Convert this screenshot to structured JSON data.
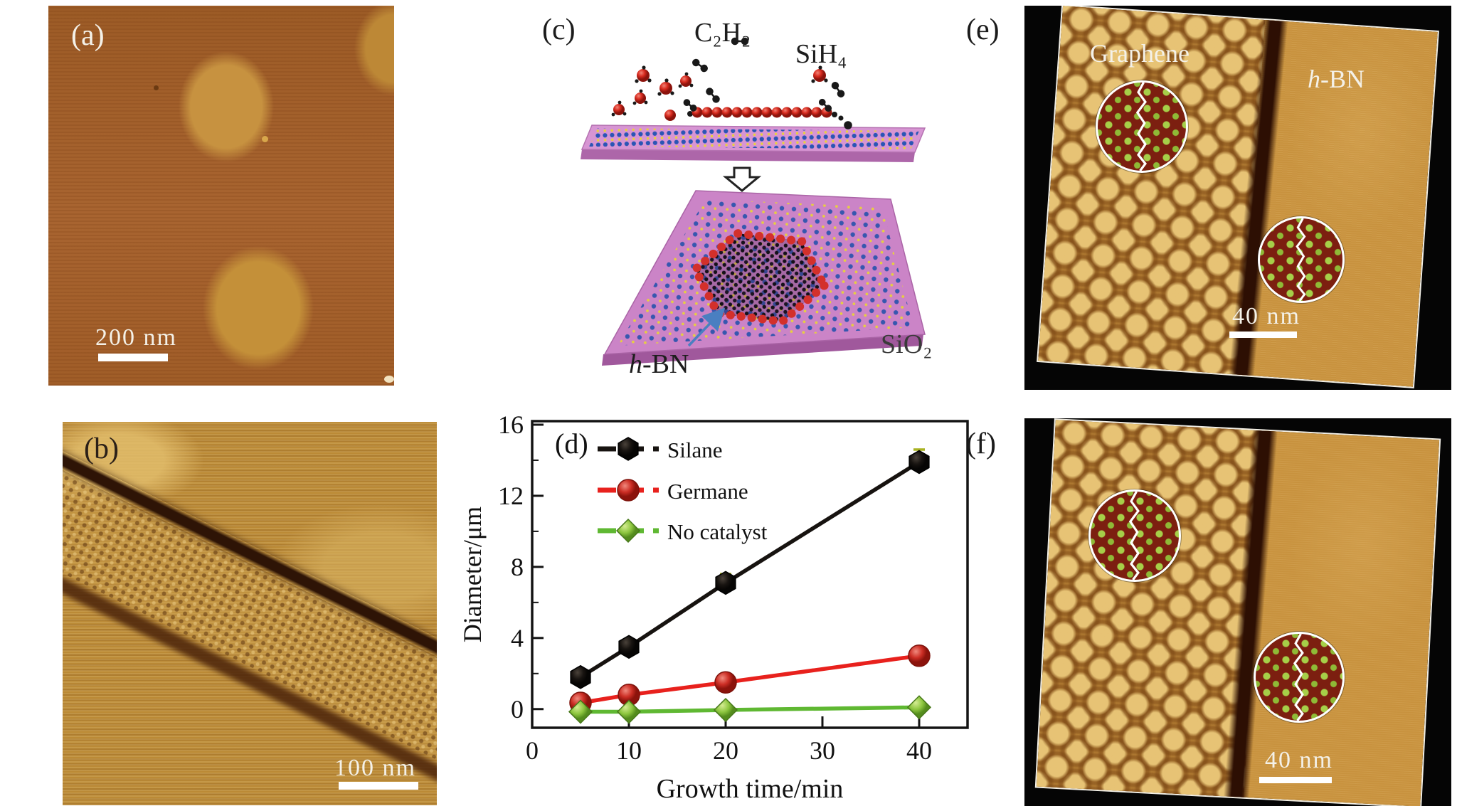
{
  "panels": {
    "a": {
      "label": "(a)",
      "scale_text": "200 nm"
    },
    "b": {
      "label": "(b)",
      "scale_text": "100 nm"
    },
    "c": {
      "label": "(c)",
      "gas_acetylene": "C₂H₂",
      "gas_silane": "SiH₄",
      "substrate_italic": "h",
      "substrate_rest": "-BN",
      "oxide": "SiO₂"
    },
    "d": {
      "label": "(d)"
    },
    "e": {
      "label": "(e)",
      "material_left": "Graphene",
      "material_right_italic": "h",
      "material_right_rest": "-BN",
      "scale_text": "40 nm"
    },
    "f": {
      "label": "(f)",
      "scale_text": "40 nm"
    }
  },
  "colors": {
    "silane_line": "#171310",
    "germane_line": "#e8211d",
    "no_catalyst_line": "#5fb832",
    "error_bar": "#a9b322",
    "substrate_pink": "#cb84c7",
    "arrow_blue": "#4a7fc1",
    "afm_brown": "#a5622b",
    "afm_gold": "#bb8a36"
  },
  "chart_data": {
    "type": "line",
    "title": "",
    "xlabel": "Growth time/min",
    "ylabel": "Diameter/μm",
    "xlim": [
      0,
      45
    ],
    "ylim": [
      -1.05,
      16.2
    ],
    "xticks": [
      0,
      10,
      20,
      30,
      40
    ],
    "yticks": [
      0,
      4,
      8,
      12,
      16
    ],
    "yticks_minor": [
      2,
      6,
      10,
      14
    ],
    "x": [
      5,
      10,
      20,
      40
    ],
    "series": [
      {
        "name": "Silane",
        "marker": "hexagon",
        "color": "#171310",
        "values": [
          1.8,
          3.5,
          7.1,
          13.9
        ],
        "errors": [
          0,
          0,
          0.5,
          0.7
        ]
      },
      {
        "name": "Germane",
        "marker": "circle",
        "color": "#e8211d",
        "values": [
          0.35,
          0.8,
          1.5,
          3.0
        ],
        "errors": null
      },
      {
        "name": "No catalyst",
        "marker": "diamond",
        "color": "#5fb832",
        "values": [
          -0.15,
          -0.15,
          -0.05,
          0.1
        ],
        "errors": null
      }
    ],
    "legend_position": "top-left",
    "grid": false
  }
}
